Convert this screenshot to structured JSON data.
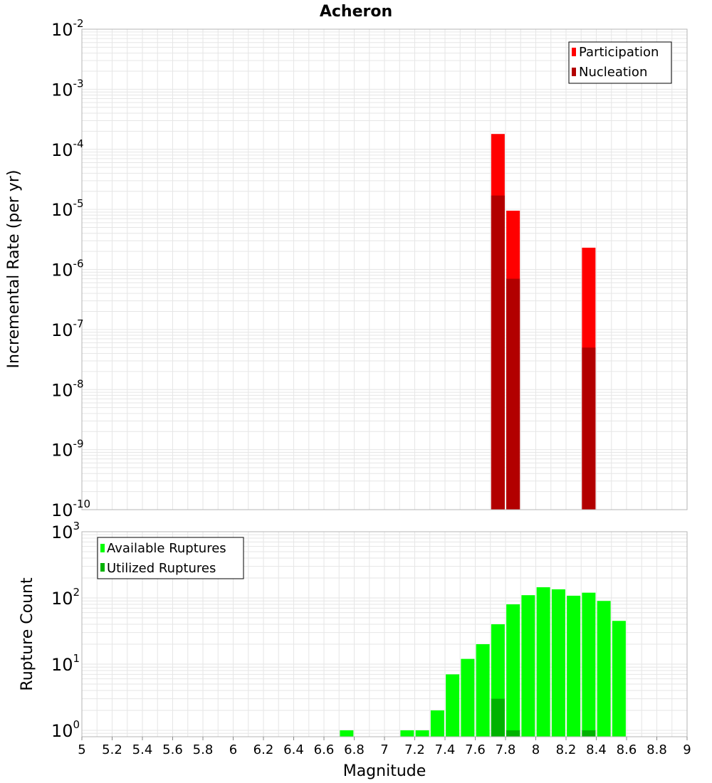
{
  "title": "Acheron",
  "colors": {
    "participation": "#ff0000",
    "nucleation": "#b20000",
    "available": "#00ff00",
    "utilized": "#00b200",
    "grid": "#e6e6e6",
    "frame": "#b4b4b4"
  },
  "chart_data": [
    {
      "type": "bar",
      "title": "Acheron",
      "ylabel": "Incremental Rate (per yr)",
      "xlabel": "",
      "y_scale": "log",
      "ylim": [
        1e-10,
        0.01
      ],
      "xlim": [
        5,
        9
      ],
      "y_tick_labels": [
        {
          "base": "10",
          "exp": "-10"
        },
        {
          "base": "10",
          "exp": "-9"
        },
        {
          "base": "10",
          "exp": "-8"
        },
        {
          "base": "10",
          "exp": "-7"
        },
        {
          "base": "10",
          "exp": "-6"
        },
        {
          "base": "10",
          "exp": "-5"
        },
        {
          "base": "10",
          "exp": "-4"
        },
        {
          "base": "10",
          "exp": "-3"
        },
        {
          "base": "10",
          "exp": "-2"
        }
      ],
      "grid": true,
      "legend_position": "top-right",
      "series": [
        {
          "name": "Participation",
          "x": [
            7.75,
            7.85,
            8.35
          ],
          "values": [
            0.00018,
            9.5e-06,
            2.3e-06
          ]
        },
        {
          "name": "Nucleation",
          "x": [
            7.75,
            7.85,
            8.35
          ],
          "values": [
            1.7e-05,
            7e-07,
            5e-08
          ]
        }
      ]
    },
    {
      "type": "bar",
      "ylabel": "Rupture Count",
      "xlabel": "Magnitude",
      "y_scale": "log",
      "ylim": [
        0.8,
        1000
      ],
      "xlim": [
        5,
        9
      ],
      "y_tick_labels": [
        {
          "base": "10",
          "exp": "0"
        },
        {
          "base": "10",
          "exp": "1"
        },
        {
          "base": "10",
          "exp": "2"
        },
        {
          "base": "10",
          "exp": "3"
        }
      ],
      "x_tick_labels": [
        "5",
        "5.2",
        "5.4",
        "5.6",
        "5.8",
        "6",
        "6.2",
        "6.4",
        "6.6",
        "6.8",
        "7",
        "7.2",
        "7.4",
        "7.6",
        "7.8",
        "8",
        "8.2",
        "8.4",
        "8.6",
        "8.8",
        "9"
      ],
      "grid": true,
      "legend_position": "top-left",
      "series": [
        {
          "name": "Available Ruptures",
          "x": [
            6.75,
            7.15,
            7.25,
            7.35,
            7.45,
            7.55,
            7.65,
            7.75,
            7.85,
            7.95,
            8.05,
            8.15,
            8.25,
            8.35,
            8.45,
            8.55
          ],
          "values": [
            1,
            1,
            1,
            2,
            7,
            12,
            20,
            40,
            80,
            110,
            145,
            135,
            108,
            120,
            90,
            45
          ]
        },
        {
          "name": "Utilized Ruptures",
          "x": [
            7.75,
            7.85,
            8.35
          ],
          "values": [
            3,
            1,
            1
          ]
        }
      ]
    }
  ]
}
